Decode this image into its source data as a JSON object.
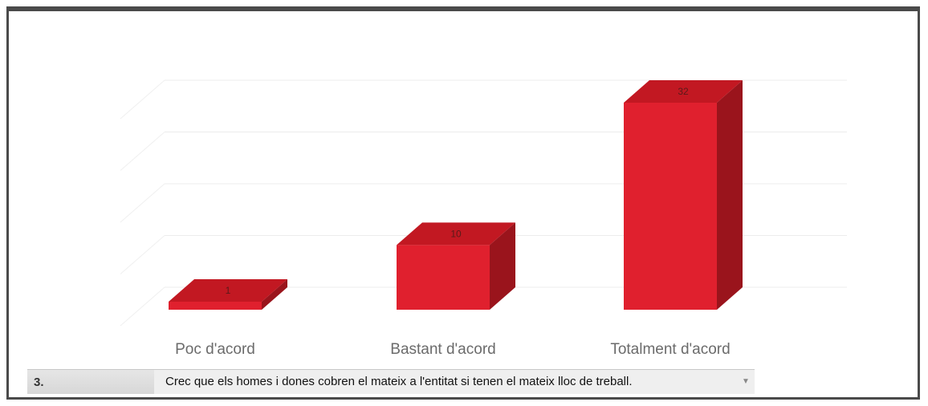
{
  "chart_data": {
    "type": "bar",
    "categories": [
      "Poc d'acord",
      "Bastant d'acord",
      "Totalment d'acord"
    ],
    "values": [
      1,
      10,
      32
    ],
    "data_labels": [
      "1",
      "10",
      "32"
    ],
    "ylim": [
      0,
      40
    ],
    "grid": true,
    "three_d": true,
    "colors": {
      "front": "#e0202e",
      "top": "#c21822",
      "side": "#9a141c"
    }
  },
  "question": {
    "number": "3.",
    "text": "Crec que els homes i dones cobren el mateix a l'entitat si tenen el mateix lloc de treball."
  },
  "icons": {
    "dropdown": "dropdown-arrow-icon"
  }
}
